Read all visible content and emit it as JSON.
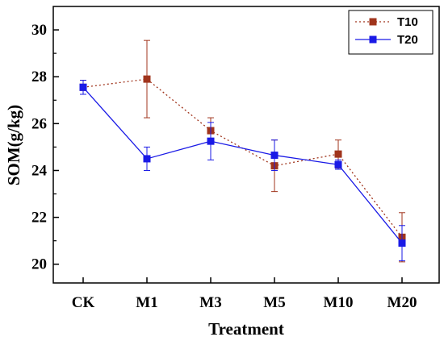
{
  "chart_data": {
    "type": "line",
    "xlabel": "Treatment",
    "ylabel": "SOM(g/kg)",
    "categories": [
      "CK",
      "M1",
      "M3",
      "M5",
      "M10",
      "M20"
    ],
    "ylim": [
      19.2,
      31
    ],
    "yticks": [
      20,
      22,
      24,
      26,
      28,
      30
    ],
    "grid": false,
    "legend_position": "top-right",
    "series": [
      {
        "name": "T10",
        "color": "#a0341c",
        "line_style": "dotted",
        "marker": "square",
        "values": [
          27.55,
          27.9,
          25.7,
          24.2,
          24.7,
          21.15
        ],
        "error": [
          0.3,
          1.65,
          0.55,
          1.1,
          0.6,
          1.05
        ]
      },
      {
        "name": "T20",
        "color": "#1a1ae6",
        "line_style": "solid",
        "marker": "square",
        "values": [
          27.55,
          24.5,
          25.25,
          24.65,
          24.25,
          20.9
        ],
        "error": [
          0.3,
          0.5,
          0.8,
          0.65,
          0.2,
          0.75
        ]
      }
    ]
  }
}
